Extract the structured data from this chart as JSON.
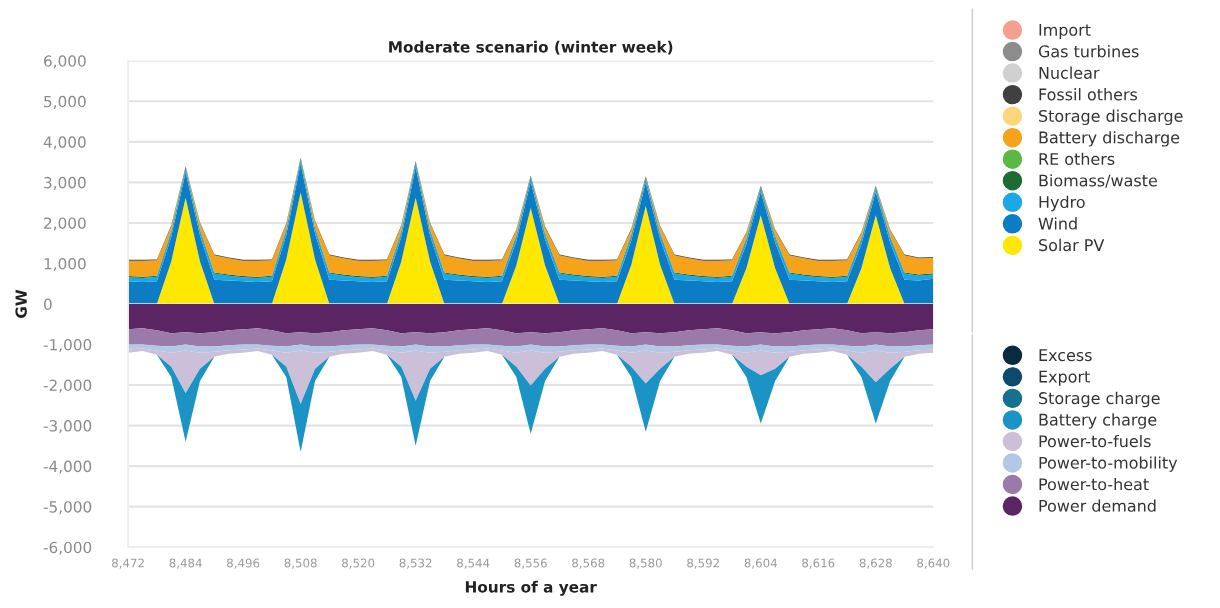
{
  "chart_data": [
    {
      "type": "area",
      "stacked": true,
      "title": "Moderate scenario (winter week)",
      "ylabel": "GW",
      "tick_labels": "y",
      "x": [
        8472,
        8475,
        8478,
        8481,
        8484,
        8487,
        8490,
        8493,
        8496,
        8499,
        8502,
        8505,
        8508,
        8511,
        8514,
        8517,
        8520,
        8523,
        8526,
        8529,
        8532,
        8535,
        8538,
        8541,
        8544,
        8547,
        8550,
        8553,
        8556,
        8559,
        8562,
        8565,
        8568,
        8571,
        8574,
        8577,
        8580,
        8583,
        8586,
        8589,
        8592,
        8595,
        8598,
        8601,
        8604,
        8607,
        8610,
        8613,
        8616,
        8619,
        8622,
        8625,
        8628,
        8631,
        8634,
        8637,
        8640
      ],
      "xlim": [
        8472,
        8640
      ],
      "ylim": [
        0,
        6000
      ],
      "yticks": [
        0,
        {
          "value": 1000,
          "label": "1,000"
        },
        {
          "value": 2000,
          "label": "2,000"
        },
        {
          "value": 3000,
          "label": "3,000"
        },
        {
          "value": 4000,
          "label": "4,000"
        },
        {
          "value": 5000,
          "label": "5,000"
        },
        {
          "value": 6000,
          "label": "6,000"
        }
      ],
      "grid": "y",
      "legend": "right",
      "series": [
        {
          "name": "Solar PV",
          "color": "#ffe800",
          "values": [
            0,
            0,
            0,
            1050,
            2620,
            1050,
            0,
            0,
            0,
            0,
            0,
            1100,
            2750,
            1100,
            0,
            0,
            0,
            0,
            0,
            1050,
            2620,
            1050,
            0,
            0,
            0,
            0,
            0,
            950,
            2370,
            950,
            0,
            0,
            0,
            0,
            0,
            970,
            2420,
            970,
            0,
            0,
            0,
            0,
            0,
            880,
            2190,
            880,
            0,
            0,
            0,
            0,
            0,
            880,
            2190,
            880,
            0,
            0,
            0
          ]
        },
        {
          "name": "Wind",
          "color": "#0c7cc4",
          "values": [
            560,
            540,
            560,
            600,
            630,
            640,
            600,
            580,
            560,
            540,
            560,
            600,
            710,
            640,
            600,
            580,
            560,
            540,
            560,
            600,
            760,
            640,
            600,
            580,
            560,
            540,
            560,
            600,
            650,
            640,
            600,
            580,
            560,
            540,
            560,
            600,
            580,
            640,
            600,
            580,
            560,
            540,
            560,
            600,
            580,
            640,
            600,
            580,
            560,
            540,
            560,
            600,
            580,
            640,
            600,
            580,
            620
          ]
        },
        {
          "name": "Hydro",
          "color": "#1aa9e6",
          "values": [
            100,
            100,
            110,
            120,
            100,
            120,
            150,
            120,
            100,
            100,
            110,
            120,
            100,
            120,
            150,
            120,
            100,
            100,
            110,
            120,
            100,
            120,
            150,
            120,
            100,
            100,
            110,
            120,
            100,
            120,
            150,
            120,
            100,
            100,
            110,
            120,
            100,
            120,
            150,
            120,
            100,
            100,
            110,
            120,
            100,
            120,
            150,
            120,
            100,
            100,
            110,
            120,
            100,
            120,
            150,
            120,
            110
          ]
        },
        {
          "name": "Biomass/waste",
          "color": "#1e6b35",
          "values": [
            30,
            30,
            30,
            30,
            30,
            30,
            30,
            30,
            30,
            30,
            30,
            30,
            30,
            30,
            30,
            30,
            30,
            30,
            30,
            30,
            30,
            30,
            30,
            30,
            30,
            30,
            30,
            30,
            30,
            30,
            30,
            30,
            30,
            30,
            30,
            30,
            30,
            30,
            30,
            30,
            30,
            30,
            30,
            30,
            30,
            30,
            30,
            30,
            30,
            30,
            30,
            30,
            30,
            30,
            30,
            30,
            30
          ]
        },
        {
          "name": "RE others",
          "color": "#5ab946",
          "values": [
            null,
            null,
            null,
            null,
            null,
            null,
            null,
            null,
            null,
            null,
            null,
            null,
            null,
            null,
            null,
            null,
            null,
            null,
            null,
            null,
            null,
            null,
            null,
            null,
            null,
            null,
            null,
            null,
            null,
            null,
            null,
            null,
            null,
            null,
            null,
            null,
            null,
            null,
            null,
            null,
            null,
            null,
            null,
            null,
            null,
            null,
            null,
            null,
            null,
            null,
            null,
            null,
            null,
            null,
            null,
            null,
            null
          ]
        },
        {
          "name": "Battery discharge",
          "color": "#f5a31a",
          "values": [
            380,
            400,
            380,
            120,
            0,
            150,
            420,
            400,
            380,
            400,
            380,
            120,
            0,
            150,
            420,
            400,
            380,
            400,
            380,
            120,
            0,
            150,
            420,
            400,
            380,
            400,
            380,
            120,
            0,
            150,
            420,
            400,
            380,
            400,
            380,
            120,
            0,
            150,
            420,
            400,
            380,
            400,
            380,
            120,
            0,
            150,
            420,
            400,
            380,
            400,
            380,
            120,
            0,
            150,
            420,
            400,
            380
          ]
        },
        {
          "name": "Storage discharge",
          "color": "#fdd77a",
          "values": [
            null,
            null,
            null,
            null,
            null,
            null,
            null,
            null,
            null,
            null,
            null,
            null,
            null,
            null,
            null,
            null,
            null,
            null,
            null,
            null,
            null,
            null,
            null,
            null,
            null,
            null,
            null,
            null,
            null,
            null,
            null,
            null,
            null,
            null,
            null,
            null,
            null,
            null,
            null,
            null,
            null,
            null,
            null,
            null,
            null,
            null,
            null,
            null,
            null,
            null,
            null,
            null,
            null,
            null,
            null,
            null,
            null
          ]
        },
        {
          "name": "Fossil others",
          "color": "#404040",
          "values": [
            20,
            20,
            20,
            20,
            20,
            20,
            20,
            20,
            20,
            20,
            20,
            20,
            20,
            20,
            20,
            20,
            20,
            20,
            20,
            20,
            20,
            20,
            20,
            20,
            20,
            20,
            20,
            20,
            20,
            20,
            20,
            20,
            20,
            20,
            20,
            20,
            20,
            20,
            20,
            20,
            20,
            20,
            20,
            20,
            20,
            20,
            20,
            20,
            20,
            20,
            20,
            20,
            20,
            20,
            20,
            20,
            20
          ]
        },
        {
          "name": "Nuclear",
          "color": "#d0d0d0",
          "values": [
            null,
            null,
            null,
            null,
            null,
            null,
            null,
            null,
            null,
            null,
            null,
            null,
            null,
            null,
            null,
            null,
            null,
            null,
            null,
            null,
            null,
            null,
            null,
            null,
            null,
            null,
            null,
            null,
            null,
            null,
            null,
            null,
            null,
            null,
            null,
            null,
            null,
            null,
            null,
            null,
            null,
            null,
            null,
            null,
            null,
            null,
            null,
            null,
            null,
            null,
            null,
            null,
            null,
            null,
            null,
            null,
            null
          ]
        },
        {
          "name": "Gas turbines",
          "color": "#8c8c8c",
          "values": [
            null,
            null,
            null,
            null,
            null,
            null,
            null,
            null,
            null,
            null,
            null,
            null,
            null,
            null,
            null,
            null,
            null,
            null,
            null,
            null,
            null,
            null,
            null,
            null,
            null,
            null,
            null,
            null,
            null,
            null,
            null,
            null,
            null,
            null,
            null,
            null,
            null,
            null,
            null,
            null,
            null,
            null,
            null,
            null,
            null,
            null,
            null,
            null,
            null,
            null,
            null,
            null,
            null,
            null,
            null,
            null,
            null
          ]
        },
        {
          "name": "Import",
          "color": "#f4a08c",
          "values": [
            null,
            null,
            null,
            null,
            null,
            null,
            null,
            null,
            null,
            null,
            null,
            null,
            null,
            null,
            null,
            null,
            null,
            null,
            null,
            null,
            null,
            null,
            null,
            null,
            null,
            null,
            null,
            null,
            null,
            null,
            null,
            null,
            null,
            null,
            null,
            null,
            null,
            null,
            null,
            null,
            null,
            null,
            null,
            null,
            null,
            null,
            null,
            null,
            null,
            null,
            null,
            null,
            null,
            null,
            null,
            null,
            null
          ]
        }
      ]
    },
    {
      "type": "area",
      "stacked": true,
      "xlabel": "Hours of a year",
      "x": [
        8472,
        8475,
        8478,
        8481,
        8484,
        8487,
        8490,
        8493,
        8496,
        8499,
        8502,
        8505,
        8508,
        8511,
        8514,
        8517,
        8520,
        8523,
        8526,
        8529,
        8532,
        8535,
        8538,
        8541,
        8544,
        8547,
        8550,
        8553,
        8556,
        8559,
        8562,
        8565,
        8568,
        8571,
        8574,
        8577,
        8580,
        8583,
        8586,
        8589,
        8592,
        8595,
        8598,
        8601,
        8604,
        8607,
        8610,
        8613,
        8616,
        8619,
        8622,
        8625,
        8628,
        8631,
        8634,
        8637,
        8640
      ],
      "xlim": [
        8472,
        8640
      ],
      "ylim": [
        -6000,
        0
      ],
      "xticks": [
        {
          "value": 8472,
          "label": "8,472"
        },
        {
          "value": 8484,
          "label": "8,484"
        },
        {
          "value": 8496,
          "label": "8,496"
        },
        {
          "value": 8508,
          "label": "8,508"
        },
        {
          "value": 8520,
          "label": "8,520"
        },
        {
          "value": 8532,
          "label": "8,532"
        },
        {
          "value": 8544,
          "label": "8,544"
        },
        {
          "value": 8556,
          "label": "8,556"
        },
        {
          "value": 8568,
          "label": "8,568"
        },
        {
          "value": 8580,
          "label": "8,580"
        },
        {
          "value": 8592,
          "label": "8,592"
        },
        {
          "value": 8604,
          "label": "8,604"
        },
        {
          "value": 8616,
          "label": "8,616"
        },
        {
          "value": 8628,
          "label": "8,628"
        },
        {
          "value": 8640,
          "label": "8,640"
        }
      ],
      "yticks": [
        {
          "value": -6000,
          "label": "-6,000"
        },
        {
          "value": -5000,
          "label": "-5,000"
        },
        {
          "value": -4000,
          "label": "-4,000"
        },
        {
          "value": -3000,
          "label": "-3,000"
        },
        {
          "value": -2000,
          "label": "-2,000"
        },
        {
          "value": -1000,
          "label": "-1,000"
        }
      ],
      "grid": "y",
      "legend": "right",
      "series": [
        {
          "name": "Power demand",
          "color": "#5b2462",
          "values": [
            -620,
            -600,
            -650,
            -720,
            -700,
            -720,
            -700,
            -650,
            -620,
            -600,
            -650,
            -720,
            -700,
            -720,
            -700,
            -650,
            -620,
            -600,
            -650,
            -720,
            -700,
            -720,
            -700,
            -650,
            -620,
            -600,
            -650,
            -720,
            -700,
            -720,
            -700,
            -650,
            -620,
            -600,
            -650,
            -720,
            -700,
            -720,
            -700,
            -650,
            -620,
            -600,
            -650,
            -720,
            -700,
            -720,
            -700,
            -650,
            -620,
            -600,
            -650,
            -720,
            -700,
            -720,
            -700,
            -650,
            -620
          ]
        },
        {
          "name": "Power-to-heat",
          "color": "#9a7aa8",
          "values": [
            -380,
            -400,
            -380,
            -330,
            -300,
            -330,
            -350,
            -370,
            -380,
            -400,
            -380,
            -330,
            -300,
            -330,
            -350,
            -370,
            -380,
            -400,
            -380,
            -330,
            -300,
            -330,
            -350,
            -370,
            -380,
            -400,
            -380,
            -330,
            -300,
            -330,
            -350,
            -370,
            -380,
            -400,
            -380,
            -330,
            -300,
            -330,
            -350,
            -370,
            -380,
            -400,
            -380,
            -330,
            -300,
            -330,
            -350,
            -370,
            -380,
            -400,
            -380,
            -330,
            -300,
            -330,
            -350,
            -370,
            -380
          ]
        },
        {
          "name": "Power-to-mobility",
          "color": "#b3c8e6",
          "values": [
            -120,
            -100,
            -120,
            -150,
            -150,
            -150,
            -130,
            -120,
            -120,
            -100,
            -120,
            -150,
            -150,
            -150,
            -130,
            -120,
            -120,
            -100,
            -120,
            -150,
            -150,
            -150,
            -130,
            -120,
            -120,
            -100,
            -120,
            -150,
            -150,
            -150,
            -130,
            -120,
            -120,
            -100,
            -120,
            -150,
            -150,
            -150,
            -130,
            -120,
            -120,
            -100,
            -120,
            -150,
            -150,
            -150,
            -130,
            -120,
            -120,
            -100,
            -120,
            -150,
            -150,
            -150,
            -130,
            -120,
            -120
          ]
        },
        {
          "name": "Power-to-fuels",
          "color": "#cbc0d8",
          "values": [
            -80,
            -60,
            -100,
            -350,
            -1050,
            -400,
            -120,
            -90,
            -80,
            -60,
            -100,
            -350,
            -1320,
            -400,
            -120,
            -90,
            -80,
            -60,
            -100,
            -350,
            -1240,
            -400,
            -120,
            -90,
            -80,
            -60,
            -100,
            -350,
            -860,
            -400,
            -120,
            -90,
            -80,
            -60,
            -100,
            -350,
            -810,
            -400,
            -120,
            -90,
            -80,
            -60,
            -100,
            -350,
            -610,
            -400,
            -120,
            -90,
            -80,
            -60,
            -100,
            -350,
            -780,
            -400,
            -120,
            -90,
            -80
          ]
        },
        {
          "name": "Battery charge",
          "color": "#1b93c4",
          "values": [
            0,
            0,
            0,
            -250,
            -1200,
            -300,
            0,
            0,
            0,
            0,
            0,
            -250,
            -1180,
            -300,
            0,
            0,
            0,
            0,
            0,
            -250,
            -1110,
            -300,
            0,
            0,
            0,
            0,
            0,
            -250,
            -1190,
            -300,
            0,
            0,
            0,
            0,
            0,
            -250,
            -1190,
            -300,
            0,
            0,
            0,
            0,
            0,
            -250,
            -1190,
            -300,
            0,
            0,
            0,
            0,
            0,
            -250,
            -1020,
            -300,
            0,
            0,
            0
          ]
        },
        {
          "name": "Storage charge",
          "color": "#17708f",
          "values": [
            null,
            null,
            null,
            null,
            null,
            null,
            null,
            null,
            null,
            null,
            null,
            null,
            null,
            null,
            null,
            null,
            null,
            null,
            null,
            null,
            null,
            null,
            null,
            null,
            null,
            null,
            null,
            null,
            null,
            null,
            null,
            null,
            null,
            null,
            null,
            null,
            null,
            null,
            null,
            null,
            null,
            null,
            null,
            null,
            null,
            null,
            null,
            null,
            null,
            null,
            null,
            null,
            null,
            null,
            null,
            null,
            null
          ]
        },
        {
          "name": "Export",
          "color": "#0e4a6e",
          "values": [
            null,
            null,
            null,
            null,
            null,
            null,
            null,
            null,
            null,
            null,
            null,
            null,
            null,
            null,
            null,
            null,
            null,
            null,
            null,
            null,
            null,
            null,
            null,
            null,
            null,
            null,
            null,
            null,
            null,
            null,
            null,
            null,
            null,
            null,
            null,
            null,
            null,
            null,
            null,
            null,
            null,
            null,
            null,
            null,
            null,
            null,
            null,
            null,
            null,
            null,
            null,
            null,
            null,
            null,
            null,
            null,
            null
          ]
        },
        {
          "name": "Excess",
          "color": "#0a2a3f",
          "values": [
            null,
            null,
            null,
            null,
            null,
            null,
            null,
            null,
            null,
            null,
            null,
            null,
            null,
            null,
            null,
            null,
            null,
            null,
            null,
            null,
            null,
            null,
            null,
            null,
            null,
            null,
            null,
            null,
            null,
            null,
            null,
            null,
            null,
            null,
            null,
            null,
            null,
            null,
            null,
            null,
            null,
            null,
            null,
            null,
            null,
            null,
            null,
            null,
            null,
            null,
            null,
            null,
            null,
            null,
            null,
            null,
            null
          ]
        }
      ]
    }
  ]
}
